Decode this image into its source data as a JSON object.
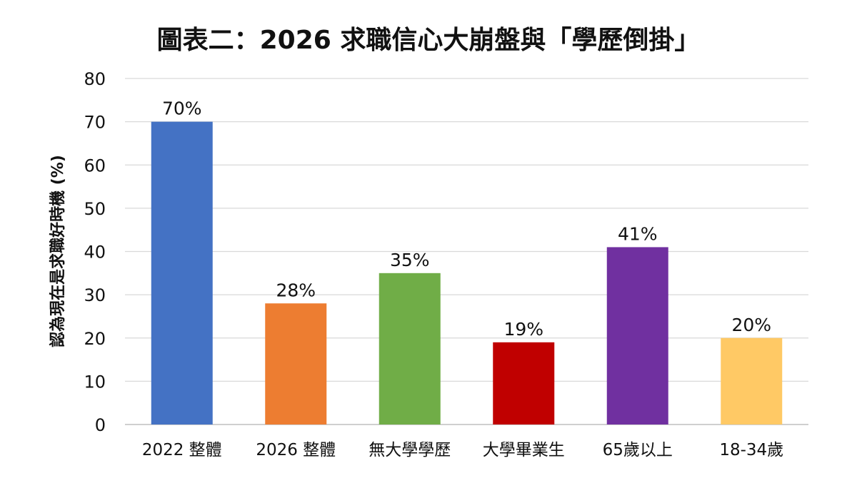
{
  "chart_data": {
    "type": "bar",
    "title": "圖表二：2026 求職信心大崩盤與「學歷倒掛」",
    "xlabel": "",
    "ylabel": "認為現在是求職好時機 (%)",
    "ylim": [
      0,
      80
    ],
    "yticks": [
      0,
      10,
      20,
      30,
      40,
      50,
      60,
      70,
      80
    ],
    "grid": true,
    "legend": "none",
    "categories": [
      "2022 整體",
      "2026 整體",
      "無大學學歷",
      "大學畢業生",
      "65歲以上",
      "18-34歲"
    ],
    "values": [
      70,
      28,
      35,
      19,
      41,
      20
    ],
    "data_labels": [
      "70%",
      "28%",
      "35%",
      "19%",
      "41%",
      "20%"
    ],
    "colors": [
      "#4472C4",
      "#ED7D31",
      "#70AD47",
      "#C00000",
      "#7030A0",
      "#FFC965"
    ]
  }
}
